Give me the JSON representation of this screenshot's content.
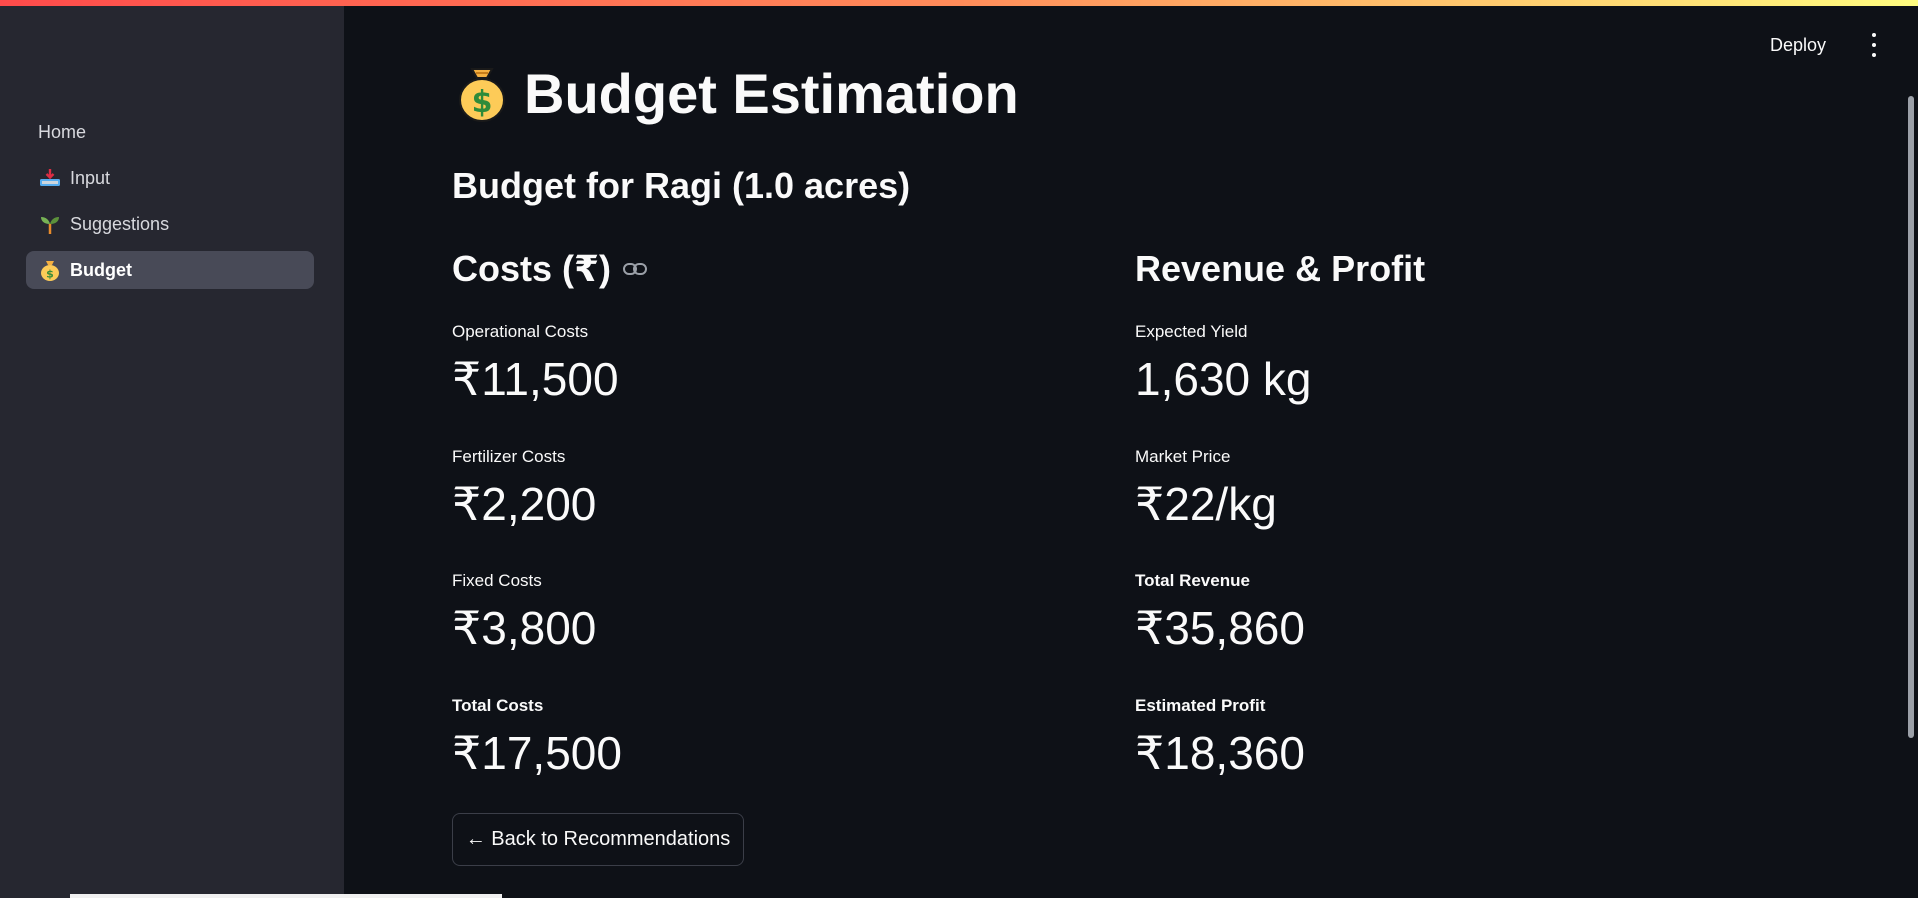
{
  "sidebar": {
    "items": [
      {
        "label": "Home",
        "icon": "none"
      },
      {
        "label": "Input",
        "icon": "inbox-tray-icon"
      },
      {
        "label": "Suggestions",
        "icon": "seedling-icon"
      },
      {
        "label": "Budget",
        "icon": "money-bag-icon"
      }
    ],
    "active_index": 3
  },
  "header": {
    "deploy_label": "Deploy",
    "menu_icon": "kebab-menu-icon"
  },
  "page": {
    "title": "Budget Estimation",
    "title_icon": "money-bag-icon",
    "subtitle": "Budget for Ragi (1.0 acres)"
  },
  "costs": {
    "heading": "Costs (₹)",
    "heading_icon": "link-icon",
    "metrics": [
      {
        "label": "Operational Costs",
        "value": "₹11,500"
      },
      {
        "label": "Fertilizer Costs",
        "value": "₹2,200"
      },
      {
        "label": "Fixed Costs",
        "value": "₹3,800"
      },
      {
        "label": "Total Costs",
        "value": "₹17,500"
      }
    ]
  },
  "revenue": {
    "heading": "Revenue & Profit",
    "metrics": [
      {
        "label": "Expected Yield",
        "value": "1,630 kg"
      },
      {
        "label": "Market Price",
        "value": "₹22/kg"
      },
      {
        "label": "Total Revenue",
        "value": "₹35,860"
      },
      {
        "label": "Estimated Profit",
        "value": "₹18,360"
      }
    ]
  },
  "back_button": {
    "label": "← Back to Recommendations"
  },
  "colors": {
    "background": "#0e1117",
    "sidebar": "#262730",
    "active_nav": "#484a57",
    "text": "#fafafa"
  }
}
